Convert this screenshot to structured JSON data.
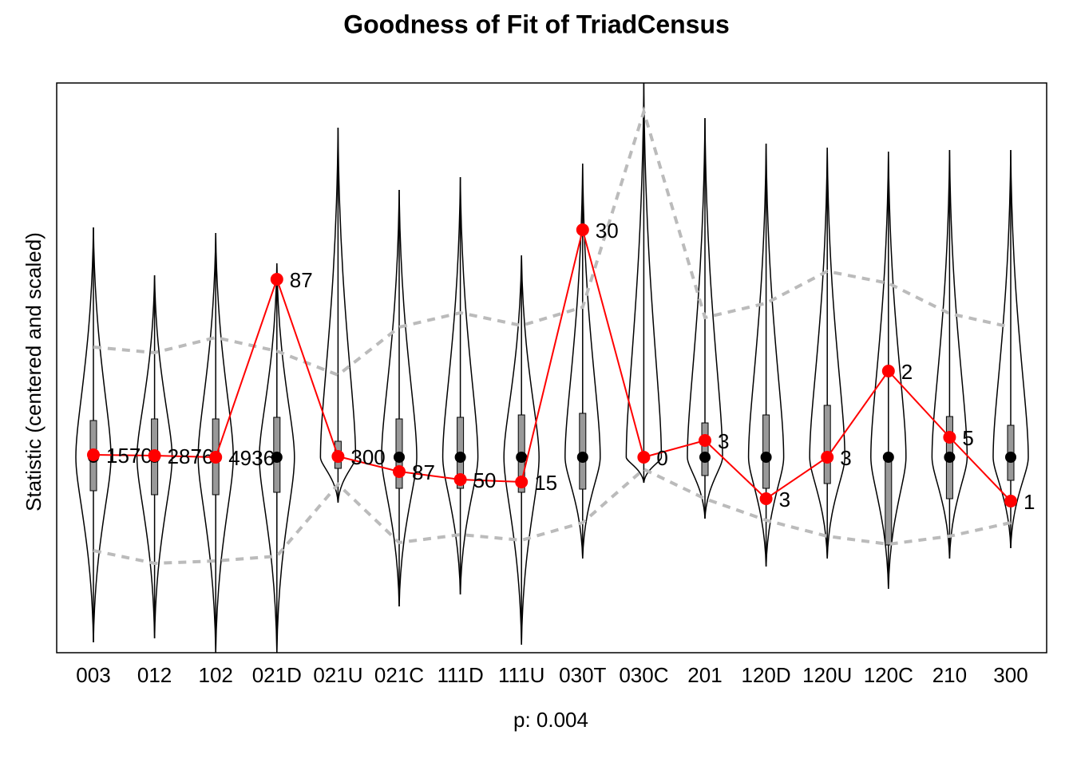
{
  "chart_data": {
    "type": "violin-gof",
    "title": "Goodness of Fit of TriadCensus",
    "xlabel": "p: 0.004",
    "ylabel": "Statistic (centered and scaled)",
    "categories": [
      "003",
      "012",
      "102",
      "021D",
      "021U",
      "021C",
      "111D",
      "111U",
      "030T",
      "030C",
      "201",
      "120D",
      "120U",
      "120C",
      "210",
      "300"
    ],
    "values": [
      0.06,
      0.04,
      0,
      4.46,
      0.02,
      -0.36,
      -0.56,
      -0.62,
      5.7,
      0,
      0.42,
      -1.04,
      0,
      2.16,
      0.5,
      -1.1
    ],
    "observed": [
      1570,
      2876,
      4936,
      87,
      300,
      87,
      50,
      15,
      30,
      0,
      3,
      3,
      3,
      2,
      5,
      1
    ],
    "median": [
      0,
      0,
      0,
      0,
      0,
      0,
      0,
      0,
      0,
      0,
      0,
      0,
      0,
      0,
      0,
      0
    ],
    "q1": [
      -0.84,
      -0.94,
      -0.94,
      -0.88,
      -0.28,
      -0.78,
      -0.78,
      -0.88,
      -0.8,
      -0.1,
      -0.46,
      -0.78,
      -0.66,
      -2.2,
      -1.04,
      -0.58
    ],
    "q3": [
      0.92,
      0.96,
      0.96,
      1.0,
      0.4,
      0.96,
      1.0,
      1.06,
      1.1,
      0.1,
      0.86,
      1.06,
      1.3,
      -0.1,
      1.02,
      0.8
    ],
    "upper": [
      5.76,
      4.56,
      5.62,
      4.86,
      8.26,
      6.7,
      7.02,
      5.06,
      7.36,
      9.38,
      8.5,
      7.86,
      7.76,
      7.66,
      7.7,
      7.7
    ],
    "lower": [
      -4.64,
      -4.54,
      -4.9,
      -4.9,
      -1.14,
      -3.74,
      -3.44,
      -4.7,
      -2.54,
      -0.64,
      -1.54,
      -2.74,
      -2.54,
      -3.3,
      -2.54,
      -2.28
    ],
    "band_upper": [
      2.76,
      2.62,
      3.0,
      2.66,
      2.06,
      3.26,
      3.62,
      3.3,
      3.76,
      8.66,
      3.5,
      3.86,
      4.66,
      4.36,
      3.6,
      3.26
    ],
    "band_lower": [
      -2.34,
      -2.66,
      -2.6,
      -2.48,
      -0.68,
      -2.14,
      -1.94,
      -2.08,
      -1.64,
      -0.3,
      -1.04,
      -1.58,
      -1.98,
      -2.18,
      -1.98,
      -1.64
    ],
    "ylim": [
      -4.9,
      9.38
    ],
    "color": "#ff0000",
    "band_color": "#bbbbbb"
  }
}
